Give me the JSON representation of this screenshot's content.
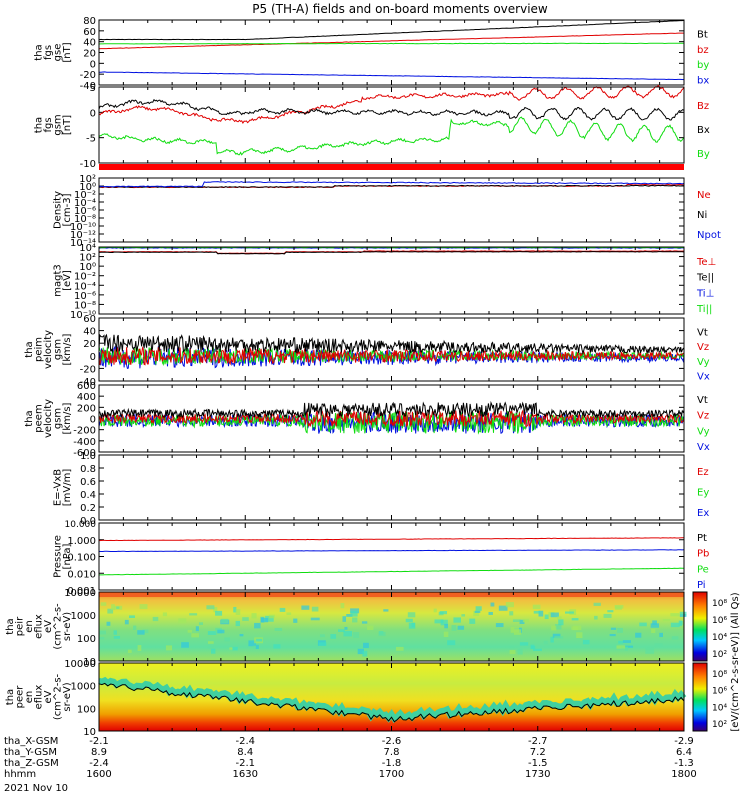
{
  "title": "P5 (TH-A) fields and on-board moments overview",
  "colors": {
    "black": "#000000",
    "red": "#e00000",
    "green": "#10dd10",
    "blue": "#0010e0"
  },
  "chart_data": [
    {
      "type": "line",
      "panel": "fgs-gse",
      "ylabel": [
        "tha",
        "fgs",
        "gse",
        "[nT]"
      ],
      "yticks": [
        "80",
        "60",
        "40",
        "20",
        "0",
        "-20",
        "-40"
      ],
      "series": [
        {
          "name": "Bt",
          "color": "black",
          "start": 44,
          "end": 79
        },
        {
          "name": "bz",
          "color": "red",
          "start": 27,
          "end": 56
        },
        {
          "name": "by",
          "color": "green",
          "start": 36,
          "end": 37
        },
        {
          "name": "bx",
          "color": "blue",
          "start": -16,
          "end": -30
        }
      ]
    },
    {
      "type": "line",
      "panel": "fgs-gsm",
      "ylabel": [
        "tha",
        "fgs",
        "gsm",
        "[nT]"
      ],
      "yticks": [
        "5",
        "0",
        "-5",
        "-10"
      ],
      "series": [
        {
          "name": "Bz",
          "color": "red"
        },
        {
          "name": "Bx",
          "color": "black"
        },
        {
          "name": "By",
          "color": "green"
        }
      ]
    },
    {
      "type": "line",
      "panel": "density",
      "ylabel": [
        "Density",
        "[cm-3]"
      ],
      "yticks": [
        "10²",
        "10⁰",
        "10⁻²",
        "10⁻⁴",
        "10⁻⁶",
        "10⁻⁸",
        "10⁻¹⁰",
        "10⁻¹²",
        "10⁻¹⁴"
      ],
      "series": [
        {
          "name": "Ne",
          "color": "red"
        },
        {
          "name": "Ni",
          "color": "black"
        },
        {
          "name": "Npot",
          "color": "blue"
        }
      ]
    },
    {
      "type": "line",
      "panel": "temperature",
      "ylabel": [
        "magt3",
        "[eV]"
      ],
      "yticks": [
        "10⁴",
        "10²",
        "10⁰",
        "10⁻²",
        "10⁻⁴",
        "10⁻⁶",
        "10⁻⁸",
        "10⁻¹⁰"
      ],
      "series": [
        {
          "name": "Te⊥",
          "color": "red"
        },
        {
          "name": "Te||",
          "color": "black"
        },
        {
          "name": "Ti⊥",
          "color": "blue"
        },
        {
          "name": "Ti||",
          "color": "green"
        }
      ]
    },
    {
      "type": "line",
      "panel": "peim-velocity",
      "ylabel": [
        "tha",
        "peim",
        "velocity",
        "gsm",
        "[km/s]"
      ],
      "yticks": [
        "60",
        "40",
        "20",
        "0",
        "-20",
        "-40"
      ],
      "series": [
        {
          "name": "Vt",
          "color": "black"
        },
        {
          "name": "Vz",
          "color": "red"
        },
        {
          "name": "Vy",
          "color": "green"
        },
        {
          "name": "Vx",
          "color": "blue"
        }
      ]
    },
    {
      "type": "line",
      "panel": "peem-velocity",
      "ylabel": [
        "tha",
        "peem",
        "velocity",
        "gsm",
        "[km/s]"
      ],
      "yticks": [
        "600",
        "400",
        "200",
        "0",
        "-200",
        "-400",
        "-600"
      ],
      "series": [
        {
          "name": "Vt",
          "color": "black"
        },
        {
          "name": "Vz",
          "color": "red"
        },
        {
          "name": "Vy",
          "color": "green"
        },
        {
          "name": "Vx",
          "color": "blue"
        }
      ]
    },
    {
      "type": "line",
      "panel": "efield",
      "ylabel": [
        "E=-VxB",
        "[mV/m]"
      ],
      "yticks": [
        "1.0",
        "0.8",
        "0.6",
        "0.4",
        "0.2",
        "0.0"
      ],
      "series": [
        {
          "name": "Ez",
          "color": "red"
        },
        {
          "name": "Ey",
          "color": "green"
        },
        {
          "name": "Ex",
          "color": "blue"
        }
      ]
    },
    {
      "type": "line",
      "panel": "pressure",
      "ylabel": [
        "Pressure",
        "[nPa]"
      ],
      "yticks": [
        "10.000",
        "1.000",
        "0.100",
        "0.010",
        "0.001"
      ],
      "series": [
        {
          "name": "Pt",
          "color": "black"
        },
        {
          "name": "Pb",
          "color": "red",
          "start": 0.9,
          "end": 1.3
        },
        {
          "name": "Pe",
          "color": "green",
          "start": 0.008,
          "end": 0.02
        },
        {
          "name": "Pi",
          "color": "blue",
          "start": 0.2,
          "end": 0.25
        }
      ]
    },
    {
      "type": "heatmap",
      "panel": "peir",
      "ylabel": [
        "tha",
        "peir",
        "en",
        "eflux",
        "eV",
        "(cm^2-s-",
        "sr-eV)"
      ],
      "yticks": [
        "10000",
        "1000",
        "100",
        "10"
      ]
    },
    {
      "type": "heatmap",
      "panel": "peer",
      "ylabel": [
        "tha",
        "peer",
        "en",
        "eflux",
        "eV",
        "(cm^2-s-",
        "sr-eV)"
      ],
      "yticks": [
        "10000",
        "1000",
        "100",
        "10"
      ]
    }
  ],
  "colorbar": {
    "ticks_top": [
      "10⁸",
      "10⁶",
      "10⁴",
      "10²"
    ],
    "ticks_bottom": [
      "10⁸",
      "10⁶",
      "10⁴",
      "10²"
    ],
    "label": "[eV/(cm^2-s-sr-eV)] (All Qs)"
  },
  "xaxis": {
    "rows": [
      {
        "label": "tha_X-GSM",
        "values": [
          "-2.1",
          "-2.4",
          "-2.6",
          "-2.7",
          "-2.9"
        ]
      },
      {
        "label": "tha_Y-GSM",
        "values": [
          "8.9",
          "8.4",
          "7.8",
          "7.2",
          "6.4"
        ]
      },
      {
        "label": "tha_Z-GSM",
        "values": [
          "-2.4",
          "-2.1",
          "-1.8",
          "-1.5",
          "-1.3"
        ]
      },
      {
        "label": "hhmm",
        "values": [
          "1600",
          "1630",
          "1700",
          "1730",
          "1800"
        ]
      }
    ],
    "date": "2021 Nov 10"
  }
}
